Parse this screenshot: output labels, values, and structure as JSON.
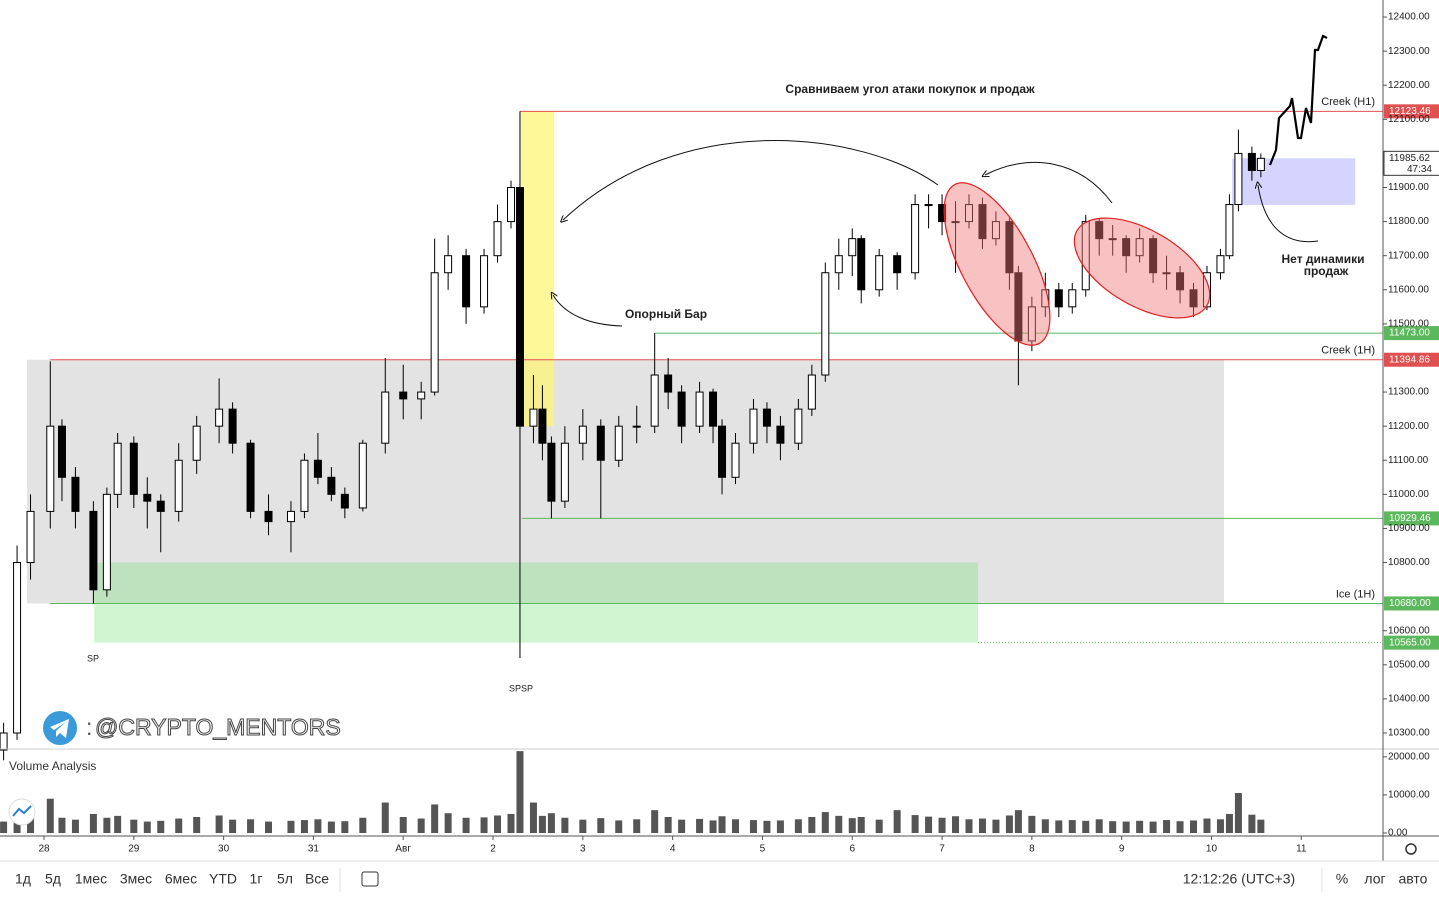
{
  "chart_data": {
    "type": "candlestick",
    "title": "Сравниваем угол атаки покупок и продаж",
    "annotations": {
      "support_bar": "Опорный Бар",
      "no_dynamics": [
        "Нет динамики",
        "продаж"
      ],
      "sp": "SP",
      "spsp": "SPSP"
    },
    "watermark": "@CRYPTO_MENTORS",
    "volume_title": "Volume Analysis",
    "xlim": [
      -0.49,
      14.91
    ],
    "xticks": [
      {
        "value": 0,
        "label": "28"
      },
      {
        "value": 1,
        "label": "29"
      },
      {
        "value": 2,
        "label": "30"
      },
      {
        "value": 3,
        "label": "31"
      },
      {
        "value": 4,
        "label": "Авг"
      },
      {
        "value": 5,
        "label": "2"
      },
      {
        "value": 6,
        "label": "3"
      },
      {
        "value": 7,
        "label": "4"
      },
      {
        "value": 8,
        "label": "5"
      },
      {
        "value": 9,
        "label": "6"
      },
      {
        "value": 10,
        "label": "7"
      },
      {
        "value": 11,
        "label": "8"
      },
      {
        "value": 12,
        "label": "9"
      },
      {
        "value": 13,
        "label": "10"
      },
      {
        "value": 14,
        "label": "11"
      }
    ],
    "ylim": [
      10256,
      12450
    ],
    "yticks": [
      {
        "value": 12400,
        "label": "12400.00"
      },
      {
        "value": 12300,
        "label": "12300.00"
      },
      {
        "value": 12200,
        "label": "12200.00"
      },
      {
        "value": 12100,
        "label": "12100.00"
      },
      {
        "value": 11900,
        "label": "11900.00"
      },
      {
        "value": 11800,
        "label": "11800.00"
      },
      {
        "value": 11700,
        "label": "11700.00"
      },
      {
        "value": 11600,
        "label": "11600.00"
      },
      {
        "value": 11500,
        "label": "11500.00"
      },
      {
        "value": 11300,
        "label": "11300.00"
      },
      {
        "value": 11200,
        "label": "11200.00"
      },
      {
        "value": 11100,
        "label": "11100.00"
      },
      {
        "value": 11000,
        "label": "11000.00"
      },
      {
        "value": 10900,
        "label": "10900.00"
      },
      {
        "value": 10800,
        "label": "10800.00"
      },
      {
        "value": 10600,
        "label": "10600.00"
      },
      {
        "value": 10500,
        "label": "10500.00"
      },
      {
        "value": 10400,
        "label": "10400.00"
      },
      {
        "value": 10300,
        "label": "10300.00"
      }
    ],
    "up_color": "#ffffff",
    "down_color": "#000000",
    "candles": [
      [
        -0.45,
        10250,
        10330,
        10220,
        10300
      ],
      [
        -0.3,
        10300,
        10850,
        10280,
        10800
      ],
      [
        -0.15,
        10800,
        11000,
        10750,
        10950
      ],
      [
        0.07,
        10950,
        11390,
        10900,
        11200
      ],
      [
        0.2,
        11200,
        11220,
        10980,
        11050
      ],
      [
        0.35,
        11050,
        11080,
        10900,
        10950
      ],
      [
        0.55,
        10950,
        10980,
        10680,
        10720
      ],
      [
        0.7,
        10720,
        11020,
        10700,
        11000
      ],
      [
        0.82,
        11000,
        11180,
        10960,
        11150
      ],
      [
        1.0,
        11150,
        11170,
        10960,
        11000
      ],
      [
        1.15,
        11000,
        11050,
        10900,
        10980
      ],
      [
        1.3,
        10980,
        11000,
        10830,
        10950
      ],
      [
        1.5,
        10950,
        11150,
        10920,
        11100
      ],
      [
        1.7,
        11100,
        11230,
        11060,
        11200
      ],
      [
        1.95,
        11200,
        11340,
        11150,
        11250
      ],
      [
        2.1,
        11250,
        11270,
        11120,
        11150
      ],
      [
        2.3,
        11150,
        11160,
        10930,
        10950
      ],
      [
        2.5,
        10950,
        11000,
        10880,
        10920
      ],
      [
        2.75,
        10920,
        10980,
        10830,
        10950
      ],
      [
        2.9,
        10950,
        11120,
        10930,
        11100
      ],
      [
        3.05,
        11100,
        11180,
        11030,
        11050
      ],
      [
        3.2,
        11050,
        11080,
        10980,
        11000
      ],
      [
        3.35,
        11000,
        11020,
        10930,
        10960
      ],
      [
        3.55,
        10960,
        11160,
        10950,
        11150
      ],
      [
        3.8,
        11150,
        11400,
        11120,
        11300
      ],
      [
        4.0,
        11300,
        11380,
        11220,
        11280
      ],
      [
        4.2,
        11280,
        11330,
        11220,
        11300
      ],
      [
        4.35,
        11300,
        11750,
        11290,
        11650
      ],
      [
        4.5,
        11650,
        11760,
        11600,
        11700
      ],
      [
        4.7,
        11700,
        11720,
        11500,
        11550
      ],
      [
        4.9,
        11550,
        11720,
        11530,
        11700
      ],
      [
        5.05,
        11700,
        11850,
        11680,
        11800
      ],
      [
        5.2,
        11800,
        11920,
        11780,
        11900
      ],
      [
        5.3,
        11900,
        12123.46,
        10520,
        11200
      ],
      [
        5.45,
        11200,
        11350,
        11150,
        11250
      ],
      [
        5.55,
        11250,
        11320,
        11100,
        11150
      ],
      [
        5.65,
        11150,
        11170,
        10929.46,
        10980
      ],
      [
        5.8,
        10980,
        11200,
        10960,
        11150
      ],
      [
        6.0,
        11150,
        11250,
        11100,
        11200
      ],
      [
        6.2,
        11200,
        11220,
        10929.46,
        11100
      ],
      [
        6.4,
        11100,
        11230,
        11080,
        11200
      ],
      [
        6.6,
        11200,
        11260,
        11150,
        11200
      ],
      [
        6.8,
        11200,
        11473,
        11180,
        11350
      ],
      [
        6.95,
        11350,
        11400,
        11250,
        11300
      ],
      [
        7.1,
        11300,
        11320,
        11150,
        11200
      ],
      [
        7.3,
        11200,
        11330,
        11180,
        11300
      ],
      [
        7.45,
        11300,
        11310,
        11150,
        11200
      ],
      [
        7.55,
        11200,
        11220,
        11000,
        11050
      ],
      [
        7.7,
        11050,
        11180,
        11030,
        11150
      ],
      [
        7.9,
        11150,
        11280,
        11120,
        11250
      ],
      [
        8.05,
        11250,
        11270,
        11150,
        11200
      ],
      [
        8.2,
        11200,
        11230,
        11100,
        11150
      ],
      [
        8.4,
        11150,
        11280,
        11130,
        11250
      ],
      [
        8.55,
        11250,
        11380,
        11230,
        11350
      ],
      [
        8.7,
        11350,
        11680,
        11330,
        11650
      ],
      [
        8.85,
        11650,
        11750,
        11600,
        11700
      ],
      [
        9.0,
        11700,
        11780,
        11640,
        11750
      ],
      [
        9.1,
        11750,
        11760,
        11560,
        11600
      ],
      [
        9.3,
        11600,
        11720,
        11580,
        11700
      ],
      [
        9.5,
        11700,
        11710,
        11600,
        11650
      ],
      [
        9.7,
        11650,
        11880,
        11630,
        11850
      ],
      [
        9.85,
        11850,
        11880,
        11780,
        11850
      ],
      [
        10.0,
        11850,
        11880,
        11760,
        11800
      ],
      [
        10.15,
        11800,
        11860,
        11650,
        11800
      ],
      [
        10.3,
        11800,
        11880,
        11780,
        11850
      ],
      [
        10.45,
        11850,
        11870,
        11720,
        11750
      ],
      [
        10.6,
        11750,
        11830,
        11730,
        11800
      ],
      [
        10.75,
        11800,
        11810,
        11600,
        11650
      ],
      [
        10.85,
        11650,
        11670,
        11320,
        11450
      ],
      [
        11.0,
        11450,
        11580,
        11420,
        11550
      ],
      [
        11.15,
        11550,
        11650,
        11520,
        11600
      ],
      [
        11.3,
        11600,
        11620,
        11520,
        11550
      ],
      [
        11.45,
        11550,
        11620,
        11530,
        11600
      ],
      [
        11.6,
        11600,
        11820,
        11580,
        11800
      ],
      [
        11.75,
        11800,
        11810,
        11700,
        11750
      ],
      [
        11.9,
        11750,
        11790,
        11700,
        11750
      ],
      [
        12.05,
        11750,
        11760,
        11650,
        11700
      ],
      [
        12.2,
        11700,
        11780,
        11680,
        11750
      ],
      [
        12.35,
        11750,
        11760,
        11620,
        11650
      ],
      [
        12.5,
        11650,
        11700,
        11600,
        11650
      ],
      [
        12.65,
        11650,
        11670,
        11560,
        11600
      ],
      [
        12.8,
        11600,
        11620,
        11520,
        11550
      ],
      [
        12.95,
        11550,
        11670,
        11540,
        11650
      ],
      [
        13.1,
        11650,
        11720,
        11630,
        11700
      ],
      [
        13.2,
        11700,
        11880,
        11690,
        11850
      ],
      [
        13.3,
        11850,
        12070,
        11830,
        12000
      ],
      [
        13.45,
        12000,
        12020,
        11920,
        11950
      ],
      [
        13.55,
        11950,
        12000,
        11930,
        11985.62
      ]
    ],
    "volume": [
      3000,
      7000,
      5000,
      9000,
      4000,
      3500,
      5000,
      4000,
      4500,
      3500,
      3000,
      3200,
      3800,
      4200,
      4600,
      3500,
      3600,
      3000,
      3200,
      3400,
      3600,
      3000,
      3100,
      4000,
      8000,
      4200,
      3800,
      7500,
      5200,
      4000,
      4100,
      4600,
      5000,
      21500,
      8000,
      4500,
      5200,
      4000,
      3500,
      3900,
      3300,
      3600,
      6000,
      4200,
      3500,
      3700,
      3300,
      4400,
      3600,
      3400,
      3200,
      3300,
      3600,
      4200,
      5500,
      4500,
      3900,
      4200,
      3500,
      6000,
      4700,
      4300,
      4000,
      4400,
      3600,
      3800,
      3500,
      4600,
      6000,
      4500,
      3600,
      3300,
      3400,
      3200,
      3600,
      3100,
      3000,
      3200,
      3000,
      3400,
      3100,
      3300,
      3800,
      3600,
      5000,
      10500,
      4800,
      3500
    ],
    "volume_color": "#555555",
    "vlim": [
      0,
      21800
    ],
    "vticks": [
      {
        "value": 20000,
        "label": "20000.00"
      },
      {
        "value": 10000,
        "label": "10000.00"
      },
      {
        "value": 0,
        "label": "0.00"
      }
    ],
    "zones": [
      {
        "x": [
          -0.19,
          13.14
        ],
        "y": [
          10680,
          11394.86
        ],
        "color": "#e3e3e3"
      },
      {
        "x": [
          0.56,
          10.4
        ],
        "y": [
          10565,
          10800
        ],
        "color": "rgba(110,225,110,0.32)"
      },
      {
        "x": [
          5.31,
          5.68
        ],
        "y": [
          11200,
          12123.46
        ],
        "color": "rgba(255,245,110,0.7)"
      },
      {
        "x": [
          13.23,
          14.6
        ],
        "y": [
          11849,
          11985.62
        ],
        "color": "rgba(170,170,255,0.5)"
      }
    ],
    "levels": [
      {
        "value": 12123.46,
        "label": "12123.46",
        "name": "Creek (H1)",
        "from": 5.3,
        "color": "#e05050"
      },
      {
        "value": 11473,
        "label": "11473.00",
        "from": 6.8,
        "color": "#5cb85c"
      },
      {
        "value": 11394.86,
        "label": "11394.86",
        "name": "Creek (1H)",
        "from": 0.07,
        "color": "#e05050"
      },
      {
        "value": 10929.46,
        "label": "10929.46",
        "from": 5.32,
        "color": "#5cb85c"
      },
      {
        "value": 10680,
        "label": "10680.00",
        "name": "Ice (1H)",
        "from": 0.07,
        "color": "#5cb85c"
      },
      {
        "value": 10565,
        "label": "10565.00",
        "from": 10.4,
        "color": "#5cb85c",
        "dotted": true
      }
    ],
    "last_price": {
      "value": 11985.62,
      "label": "11985.62",
      "countdown": "47:34"
    }
  },
  "toolbar": {
    "ranges": [
      "1д",
      "5д",
      "1мес",
      "3мес",
      "6мес",
      "YTD",
      "1г",
      "5л",
      "Все"
    ],
    "time": "12:12:26 (UTC+3)",
    "options": [
      "%",
      "лог",
      "авто"
    ]
  }
}
